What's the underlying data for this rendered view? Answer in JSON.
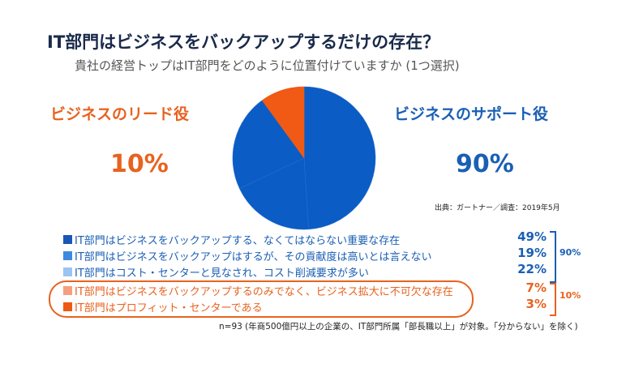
{
  "title": "IT部門はビジネスをバックアップするだけの存在？",
  "subtitle": "貴社の経営トップはIT部門をどのように位置付けていますか (1つ選択)",
  "left": {
    "label": "ビジネスのリード役",
    "pct": "10%"
  },
  "right": {
    "label": "ビジネスのサポート役",
    "pct": "90%"
  },
  "source": "出典：ガートナー／調査：2019年5月",
  "note": "n=93 (年商500億円以上の企業の、IT部門所属「部長職以上」が対象。「分からない」を除く)",
  "chart_data": {
    "type": "pie",
    "categories": [
      "IT部門はビジネスをバックアップする、なくてはならない重要な存在",
      "IT部門はビジネスをバックアップはするが、その貢献度は高いとは言えない",
      "IT部門はコスト・センターと見なされ、コスト削減要求が多い",
      "IT部門はビジネスをバックアップするのみでなく、ビジネス拡大に不可欠な存在",
      "IT部門はプロフィット・センターである"
    ],
    "values": [
      49,
      19,
      22,
      7,
      3
    ],
    "labels": [
      "49%",
      "19%",
      "22%",
      "7%",
      "3%"
    ],
    "legend_colors": [
      "#1a56b8",
      "#3b8ae0",
      "#9cc4f0",
      "#f4a080",
      "#ee5a12"
    ],
    "pie_colors": [
      "#0b5cc4",
      "#0b5cc4",
      "#0b5cc4",
      "#f05a14",
      "#f05a14"
    ],
    "groups": [
      {
        "label": "90%",
        "color": "#1a5fb4"
      },
      {
        "label": "10%",
        "color": "#e8621f"
      }
    ]
  }
}
